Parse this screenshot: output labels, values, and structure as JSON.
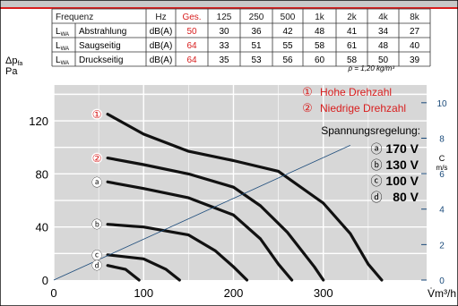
{
  "table": {
    "headers": [
      "Frequenz",
      "Hz",
      "Ges.",
      "125",
      "250",
      "500",
      "1k",
      "2k",
      "4k",
      "8k"
    ],
    "rows": [
      {
        "label_main": "L",
        "label_sub": "WA",
        "label_name": "Abstrahlung",
        "unit": "dB(A)",
        "total": "50",
        "values": [
          "30",
          "36",
          "42",
          "48",
          "41",
          "34",
          "27"
        ]
      },
      {
        "label_main": "L",
        "label_sub": "WA",
        "label_name": "Saugseitig",
        "unit": "dB(A)",
        "total": "64",
        "values": [
          "33",
          "51",
          "55",
          "58",
          "61",
          "48",
          "40"
        ]
      },
      {
        "label_main": "L",
        "label_sub": "WA",
        "label_name": "Druckseitig",
        "unit": "dB(A)",
        "total": "64",
        "values": [
          "35",
          "53",
          "56",
          "60",
          "58",
          "50",
          "39"
        ]
      }
    ],
    "density_note": "ρ = 1,20 kg/m³"
  },
  "chart_data": {
    "type": "line",
    "ylabel_main": "Δp",
    "ylabel_sub": "fa",
    "ylabel_unit": "Pa",
    "xlabel": "V̇m³/h",
    "x_ticks": [
      "0",
      "100",
      "200",
      "300"
    ],
    "y_ticks": [
      "0",
      "40",
      "80",
      "120"
    ],
    "xlim": [
      0,
      415
    ],
    "ylim": [
      0,
      147
    ],
    "right_axis": {
      "label_top": "C",
      "label_unit": "m/s",
      "ticks": [
        "0",
        "2",
        "4",
        "6",
        "8",
        "10"
      ],
      "range": [
        0,
        11
      ]
    },
    "legend": [
      {
        "mark": "①",
        "text": "Hohe Drehzahl"
      },
      {
        "mark": "②",
        "text": "Niedrige Drehzahl"
      }
    ],
    "legend_title": "Spannungsregelung:",
    "voltages": [
      {
        "mark": "ⓐ",
        "text": "170 V"
      },
      {
        "mark": "ⓑ",
        "text": "130 V"
      },
      {
        "mark": "ⓒ",
        "text": "100 V"
      },
      {
        "mark": "ⓓ",
        "text": "80 V"
      }
    ],
    "series": [
      {
        "name": "①",
        "marker": "①",
        "style": "solid",
        "x": [
          60,
          100,
          150,
          200,
          250,
          300,
          330,
          350,
          365
        ],
        "y": [
          125,
          110,
          97,
          90,
          82,
          58,
          35,
          12,
          0
        ]
      },
      {
        "name": "②",
        "marker": "②",
        "style": "solid",
        "x": [
          60,
          100,
          150,
          200,
          230,
          260,
          290,
          300
        ],
        "y": [
          92,
          87,
          80,
          70,
          56,
          36,
          10,
          0
        ]
      },
      {
        "name": "ⓐ",
        "marker": "ⓐ",
        "style": "solid",
        "x": [
          60,
          100,
          150,
          200,
          230,
          250,
          265
        ],
        "y": [
          74,
          69,
          62,
          49,
          31,
          12,
          0
        ]
      },
      {
        "name": "ⓑ",
        "marker": "ⓑ",
        "style": "solid",
        "x": [
          60,
          100,
          150,
          180,
          200,
          215
        ],
        "y": [
          42,
          40,
          34,
          22,
          10,
          0
        ]
      },
      {
        "name": "ⓒ",
        "marker": "ⓒ",
        "style": "solid",
        "x": [
          60,
          100,
          125,
          140
        ],
        "y": [
          19,
          16,
          8,
          0
        ]
      },
      {
        "name": "ⓓ",
        "marker": "ⓓ",
        "style": "solid",
        "x": [
          60,
          80,
          95
        ],
        "y": [
          11,
          8,
          0
        ]
      },
      {
        "name": "C",
        "marker": "",
        "style": "thin",
        "x": [
          0,
          330
        ],
        "y": [
          0,
          7.6
        ]
      }
    ]
  }
}
